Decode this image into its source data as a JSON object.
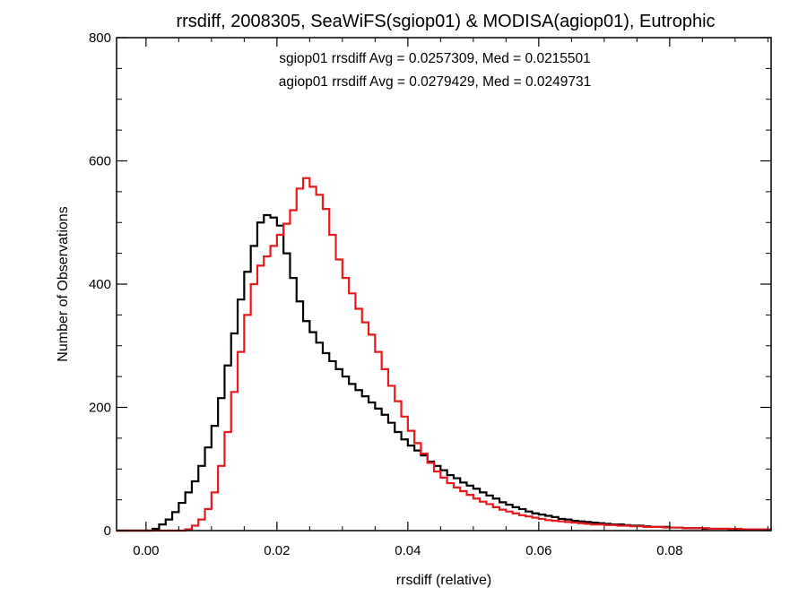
{
  "chart_data": {
    "type": "line",
    "title": "rrsdiff, 2008305, SeaWiFS(sgiop01) & MODISA(agiop01), Eutrophic",
    "xlabel": "rrsdiff (relative)",
    "ylabel": "Number of Observations",
    "xlim": [
      -0.0045,
      0.0955
    ],
    "ylim": [
      0,
      800
    ],
    "x_ticks": [
      0.0,
      0.02,
      0.04,
      0.06,
      0.08
    ],
    "x_tick_labels": [
      "0.00",
      "0.02",
      "0.04",
      "0.06",
      "0.08"
    ],
    "y_ticks": [
      0,
      200,
      400,
      600,
      800
    ],
    "y_tick_labels": [
      "0",
      "200",
      "400",
      "600",
      "800"
    ],
    "grid": false,
    "step": "histogram",
    "annotations": [
      {
        "text": "sgiop01 rrsdiff Avg = 0.0257309, Med = 0.0215501",
        "color": "#000000"
      },
      {
        "text": "agiop01 rrsdiff Avg = 0.0279429, Med = 0.0249731",
        "color": "#e8191c"
      }
    ],
    "series": [
      {
        "color": "#000000",
        "points": [
          [
            -0.0045,
            0
          ],
          [
            0.0,
            0
          ],
          [
            0.001,
            3
          ],
          [
            0.002,
            10
          ],
          [
            0.003,
            18
          ],
          [
            0.004,
            30
          ],
          [
            0.005,
            45
          ],
          [
            0.006,
            62
          ],
          [
            0.007,
            80
          ],
          [
            0.008,
            105
          ],
          [
            0.009,
            135
          ],
          [
            0.01,
            170
          ],
          [
            0.011,
            215
          ],
          [
            0.012,
            268
          ],
          [
            0.013,
            320
          ],
          [
            0.014,
            375
          ],
          [
            0.015,
            420
          ],
          [
            0.016,
            462
          ],
          [
            0.017,
            500
          ],
          [
            0.018,
            512
          ],
          [
            0.019,
            508
          ],
          [
            0.02,
            495
          ],
          [
            0.021,
            450
          ],
          [
            0.022,
            410
          ],
          [
            0.023,
            372
          ],
          [
            0.024,
            340
          ],
          [
            0.025,
            322
          ],
          [
            0.026,
            305
          ],
          [
            0.027,
            288
          ],
          [
            0.028,
            275
          ],
          [
            0.029,
            262
          ],
          [
            0.03,
            250
          ],
          [
            0.031,
            238
          ],
          [
            0.032,
            228
          ],
          [
            0.033,
            218
          ],
          [
            0.034,
            208
          ],
          [
            0.035,
            198
          ],
          [
            0.036,
            188
          ],
          [
            0.037,
            175
          ],
          [
            0.038,
            160
          ],
          [
            0.039,
            148
          ],
          [
            0.04,
            138
          ],
          [
            0.041,
            130
          ],
          [
            0.042,
            122
          ],
          [
            0.043,
            112
          ],
          [
            0.044,
            105
          ],
          [
            0.045,
            98
          ],
          [
            0.046,
            90
          ],
          [
            0.047,
            85
          ],
          [
            0.048,
            78
          ],
          [
            0.049,
            73
          ],
          [
            0.05,
            68
          ],
          [
            0.051,
            62
          ],
          [
            0.052,
            57
          ],
          [
            0.053,
            52
          ],
          [
            0.054,
            46
          ],
          [
            0.055,
            42
          ],
          [
            0.056,
            38
          ],
          [
            0.057,
            35
          ],
          [
            0.058,
            31
          ],
          [
            0.059,
            28
          ],
          [
            0.06,
            26
          ],
          [
            0.061,
            24
          ],
          [
            0.062,
            22
          ],
          [
            0.063,
            19
          ],
          [
            0.064,
            18
          ],
          [
            0.065,
            16
          ],
          [
            0.066,
            15
          ],
          [
            0.067,
            14
          ],
          [
            0.068,
            13
          ],
          [
            0.069,
            12
          ],
          [
            0.07,
            11
          ],
          [
            0.071,
            10
          ],
          [
            0.072,
            10
          ],
          [
            0.073,
            9
          ],
          [
            0.074,
            8
          ],
          [
            0.075,
            8
          ],
          [
            0.076,
            7
          ],
          [
            0.077,
            6
          ],
          [
            0.078,
            6
          ],
          [
            0.079,
            6
          ],
          [
            0.08,
            5
          ],
          [
            0.081,
            5
          ],
          [
            0.082,
            4
          ],
          [
            0.083,
            4
          ],
          [
            0.084,
            4
          ],
          [
            0.085,
            3
          ],
          [
            0.086,
            3
          ],
          [
            0.087,
            3
          ],
          [
            0.088,
            3
          ],
          [
            0.089,
            2
          ],
          [
            0.09,
            2
          ],
          [
            0.091,
            2
          ],
          [
            0.092,
            2
          ],
          [
            0.093,
            2
          ],
          [
            0.094,
            2
          ],
          [
            0.095,
            1
          ],
          [
            0.0955,
            1
          ]
        ]
      },
      {
        "color": "#e8191c",
        "points": [
          [
            -0.0045,
            0
          ],
          [
            0.005,
            0
          ],
          [
            0.006,
            2
          ],
          [
            0.007,
            8
          ],
          [
            0.008,
            18
          ],
          [
            0.009,
            35
          ],
          [
            0.01,
            62
          ],
          [
            0.011,
            105
          ],
          [
            0.012,
            160
          ],
          [
            0.013,
            225
          ],
          [
            0.014,
            290
          ],
          [
            0.015,
            350
          ],
          [
            0.016,
            400
          ],
          [
            0.017,
            430
          ],
          [
            0.018,
            445
          ],
          [
            0.019,
            462
          ],
          [
            0.02,
            480
          ],
          [
            0.021,
            498
          ],
          [
            0.022,
            520
          ],
          [
            0.023,
            555
          ],
          [
            0.024,
            572
          ],
          [
            0.025,
            558
          ],
          [
            0.026,
            545
          ],
          [
            0.027,
            522
          ],
          [
            0.028,
            480
          ],
          [
            0.029,
            440
          ],
          [
            0.03,
            410
          ],
          [
            0.031,
            385
          ],
          [
            0.032,
            360
          ],
          [
            0.033,
            338
          ],
          [
            0.034,
            318
          ],
          [
            0.035,
            290
          ],
          [
            0.036,
            262
          ],
          [
            0.037,
            235
          ],
          [
            0.038,
            210
          ],
          [
            0.039,
            185
          ],
          [
            0.04,
            162
          ],
          [
            0.041,
            142
          ],
          [
            0.042,
            125
          ],
          [
            0.043,
            110
          ],
          [
            0.044,
            96
          ],
          [
            0.045,
            86
          ],
          [
            0.046,
            77
          ],
          [
            0.047,
            70
          ],
          [
            0.048,
            64
          ],
          [
            0.049,
            58
          ],
          [
            0.05,
            52
          ],
          [
            0.051,
            47
          ],
          [
            0.052,
            43
          ],
          [
            0.053,
            38
          ],
          [
            0.054,
            34
          ],
          [
            0.055,
            31
          ],
          [
            0.056,
            28
          ],
          [
            0.057,
            25
          ],
          [
            0.058,
            23
          ],
          [
            0.059,
            21
          ],
          [
            0.06,
            19
          ],
          [
            0.061,
            17
          ],
          [
            0.062,
            16
          ],
          [
            0.063,
            15
          ],
          [
            0.064,
            14
          ],
          [
            0.065,
            13
          ],
          [
            0.066,
            12
          ],
          [
            0.067,
            11
          ],
          [
            0.068,
            10
          ],
          [
            0.069,
            10
          ],
          [
            0.07,
            9
          ],
          [
            0.071,
            9
          ],
          [
            0.072,
            8
          ],
          [
            0.073,
            8
          ],
          [
            0.074,
            7
          ],
          [
            0.075,
            7
          ],
          [
            0.076,
            6
          ],
          [
            0.077,
            6
          ],
          [
            0.078,
            6
          ],
          [
            0.079,
            5
          ],
          [
            0.08,
            5
          ],
          [
            0.081,
            5
          ],
          [
            0.082,
            4
          ],
          [
            0.083,
            4
          ],
          [
            0.084,
            4
          ],
          [
            0.085,
            4
          ],
          [
            0.086,
            3
          ],
          [
            0.087,
            3
          ],
          [
            0.088,
            3
          ],
          [
            0.089,
            3
          ],
          [
            0.09,
            3
          ],
          [
            0.091,
            2
          ],
          [
            0.092,
            2
          ],
          [
            0.093,
            2
          ],
          [
            0.094,
            2
          ],
          [
            0.095,
            2
          ],
          [
            0.0955,
            2
          ]
        ]
      }
    ]
  }
}
